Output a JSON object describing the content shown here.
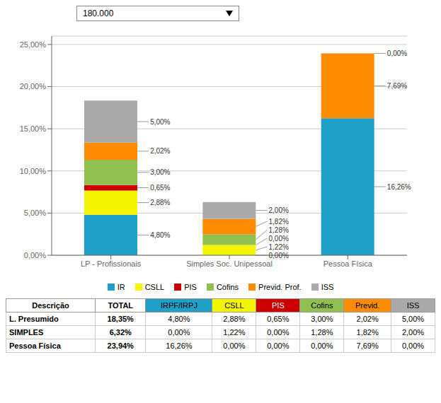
{
  "chart_data": {
    "type": "bar",
    "stacked": true,
    "grid": true,
    "legend": "bottom",
    "data_labels": true,
    "dropdown": "180.000",
    "categories": [
      "LP - Profissionais",
      "Simples Soc. Unipessoal",
      "Pessoa Física"
    ],
    "series": [
      {
        "name": "IR",
        "color": "#1EA0C8",
        "values": [
          4.8,
          0.0,
          16.26
        ],
        "value_labels": [
          "4,80%",
          "0,00%",
          "16,26%"
        ]
      },
      {
        "name": "CSLL",
        "color": "#F5F500",
        "values": [
          2.88,
          1.22,
          0.0
        ],
        "value_labels": [
          "2,88%",
          "1,22%",
          null
        ]
      },
      {
        "name": "PIS",
        "color": "#CC0000",
        "values": [
          0.65,
          0.0,
          0.0
        ],
        "value_labels": [
          "0,65%",
          "0,00%",
          null
        ]
      },
      {
        "name": "Cofins",
        "color": "#92C050",
        "values": [
          3.0,
          1.28,
          0.0
        ],
        "value_labels": [
          "3,00%",
          "1,28%",
          null
        ]
      },
      {
        "name": "Previd. Prof.",
        "color": "#FF8C00",
        "values": [
          2.02,
          1.82,
          7.69
        ],
        "value_labels": [
          "2,02%",
          "1,82%",
          "7,69%"
        ]
      },
      {
        "name": "ISS",
        "color": "#AAAAAA",
        "values": [
          5.0,
          2.0,
          0.0
        ],
        "value_labels": [
          "5,00%",
          "2,00%",
          "0,00%"
        ]
      }
    ],
    "ylim": [
      0,
      26
    ],
    "yticks": [
      {
        "value": 0,
        "label": "0,00%"
      },
      {
        "value": 5,
        "label": "5,00%"
      },
      {
        "value": 10,
        "label": "10,00%"
      },
      {
        "value": 15,
        "label": "15,00%"
      },
      {
        "value": 20,
        "label": "20,00%"
      },
      {
        "value": 25,
        "label": "25,00%"
      }
    ],
    "table": {
      "headers": [
        "Descrição",
        "TOTAL",
        "IRPF/IRPJ",
        "CSLL",
        "PIS",
        "Cofins",
        "Previd.",
        "ISS"
      ],
      "header_colors": [
        "#FFFFFF",
        "#FFFFFF",
        "#1EA0C8",
        "#F5F500",
        "#CC0000",
        "#92C050",
        "#FF8C00",
        "#AAAAAA"
      ],
      "header_text_colors": [
        "#000000",
        "#000000",
        "#000000",
        "#000000",
        "#FFFFFF",
        "#000000",
        "#000000",
        "#000000"
      ],
      "rows": [
        [
          "L. Presumido",
          "18,35%",
          "4,80%",
          "2,88%",
          "0,65%",
          "3,00%",
          "2,02%",
          "5,00%"
        ],
        [
          "SIMPLES",
          "6,32%",
          "0,00%",
          "1,22%",
          "0,00%",
          "1,28%",
          "1,82%",
          "2,00%"
        ],
        [
          "Pessoa Física",
          "23,94%",
          "16,26%",
          "0,00%",
          "0,00%",
          "0,00%",
          "7,69%",
          "0,00%"
        ]
      ]
    }
  }
}
